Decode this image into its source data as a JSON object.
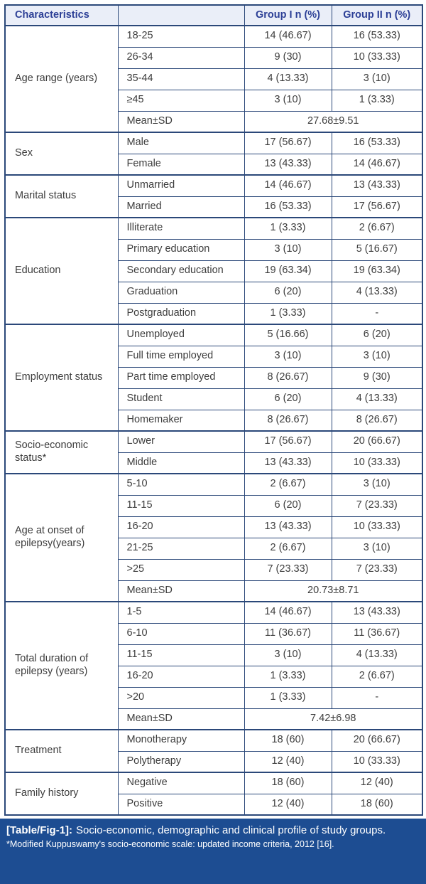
{
  "table": {
    "header": [
      "Characteristics",
      "",
      "Group I n (%)",
      "Group II n (%)"
    ],
    "sections": [
      {
        "label": "Age range (years)",
        "rows": [
          {
            "sub": "18-25",
            "g1": "14 (46.67)",
            "g2": "16 (53.33)"
          },
          {
            "sub": "26-34",
            "g1": "9 (30)",
            "g2": "10 (33.33)"
          },
          {
            "sub": "35-44",
            "g1": "4 (13.33)",
            "g2": "3 (10)"
          },
          {
            "sub": "≥45",
            "g1": "3 (10)",
            "g2": "1 (3.33)"
          },
          {
            "sub": "Mean±SD",
            "span": "27.68±9.51"
          }
        ]
      },
      {
        "label": "Sex",
        "rows": [
          {
            "sub": "Male",
            "g1": "17 (56.67)",
            "g2": "16 (53.33)"
          },
          {
            "sub": "Female",
            "g1": "13 (43.33)",
            "g2": "14 (46.67)"
          }
        ]
      },
      {
        "label": "Marital status",
        "rows": [
          {
            "sub": "Unmarried",
            "g1": "14 (46.67)",
            "g2": "13 (43.33)"
          },
          {
            "sub": "Married",
            "g1": "16 (53.33)",
            "g2": "17 (56.67)"
          }
        ]
      },
      {
        "label": "Education",
        "rows": [
          {
            "sub": "Illiterate",
            "g1": "1 (3.33)",
            "g2": "2 (6.67)"
          },
          {
            "sub": "Primary education",
            "g1": "3 (10)",
            "g2": "5 (16.67)"
          },
          {
            "sub": "Secondary education",
            "g1": "19 (63.34)",
            "g2": "19 (63.34)"
          },
          {
            "sub": "Graduation",
            "g1": "6 (20)",
            "g2": "4 (13.33)"
          },
          {
            "sub": "Postgraduation",
            "g1": "1 (3.33)",
            "g2": "-"
          }
        ]
      },
      {
        "label": "Employment status",
        "rows": [
          {
            "sub": "Unemployed",
            "g1": "5 (16.66)",
            "g2": "6 (20)"
          },
          {
            "sub": "Full time employed",
            "g1": "3 (10)",
            "g2": "3 (10)"
          },
          {
            "sub": "Part time employed",
            "g1": "8 (26.67)",
            "g2": "9 (30)"
          },
          {
            "sub": "Student",
            "g1": "6 (20)",
            "g2": "4 (13.33)"
          },
          {
            "sub": "Homemaker",
            "g1": "8 (26.67)",
            "g2": "8 (26.67)"
          }
        ]
      },
      {
        "label": "Socio-economic status*",
        "rows": [
          {
            "sub": "Lower",
            "g1": "17 (56.67)",
            "g2": "20 (66.67)"
          },
          {
            "sub": "Middle",
            "g1": "13 (43.33)",
            "g2": "10 (33.33)"
          }
        ]
      },
      {
        "label": "Age at onset of epilepsy(years)",
        "rows": [
          {
            "sub": "5-10",
            "g1": "2 (6.67)",
            "g2": "3 (10)"
          },
          {
            "sub": "11-15",
            "g1": "6 (20)",
            "g2": "7 (23.33)"
          },
          {
            "sub": "16-20",
            "g1": "13 (43.33)",
            "g2": "10 (33.33)"
          },
          {
            "sub": "21-25",
            "g1": "2 (6.67)",
            "g2": "3 (10)"
          },
          {
            "sub": ">25",
            "g1": "7 (23.33)",
            "g2": "7 (23.33)"
          },
          {
            "sub": "Mean±SD",
            "span": "20.73±8.71"
          }
        ]
      },
      {
        "label": "Total duration of epilepsy (years)",
        "rows": [
          {
            "sub": "1-5",
            "g1": "14 (46.67)",
            "g2": "13 (43.33)"
          },
          {
            "sub": "6-10",
            "g1": "11 (36.67)",
            "g2": "11 (36.67)"
          },
          {
            "sub": "11-15",
            "g1": "3 (10)",
            "g2": "4 (13.33)"
          },
          {
            "sub": "16-20",
            "g1": "1 (3.33)",
            "g2": "2 (6.67)"
          },
          {
            "sub": ">20",
            "g1": "1 (3.33)",
            "g2": "-"
          },
          {
            "sub": "Mean±SD",
            "span": "7.42±6.98"
          }
        ]
      },
      {
        "label": "Treatment",
        "rows": [
          {
            "sub": "Monotherapy",
            "g1": "18 (60)",
            "g2": "20 (66.67)"
          },
          {
            "sub": "Polytherapy",
            "g1": "12 (40)",
            "g2": "10 (33.33)"
          }
        ]
      },
      {
        "label": "Family history",
        "rows": [
          {
            "sub": "Negative",
            "g1": "18 (60)",
            "g2": "12 (40)"
          },
          {
            "sub": "Positive",
            "g1": "12 (40)",
            "g2": "18 (60)"
          }
        ]
      }
    ],
    "caption_label": "[Table/Fig-1]:",
    "caption_text": "Socio-economic, demographic and clinical profile of study groups.",
    "footnote": "*Modified Kuppuswamy's socio-economic scale: updated income criteria, 2012 [16]."
  },
  "colors": {
    "border": "#2b4879",
    "header_bg": "#eaeef8",
    "header_text": "#2c3f96",
    "body_text": "#3d3d3d",
    "caption_bg": "#1d4d92",
    "caption_text": "#ffffff"
  }
}
